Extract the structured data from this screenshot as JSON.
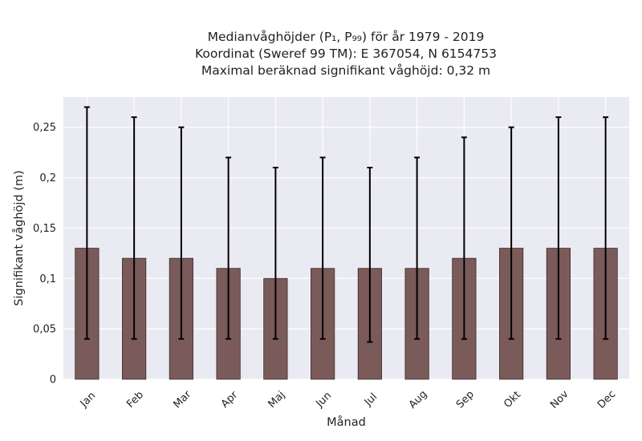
{
  "title_lines": [
    "Medianvåghöjder (P₁, P₉₉) för år 1979 - 2019",
    "Koordinat (Sweref 99 TM): E 367054, N 6154753",
    "Maximal beräknad signifikant våghöjd: 0,32 m"
  ],
  "chart_data": {
    "type": "bar",
    "title": "Medianvåghöjder (P₁, P₉₉) för år 1979 - 2019",
    "xlabel": "Månad",
    "ylabel": "Signifikant våghöjd (m)",
    "categories": [
      "Jan",
      "Feb",
      "Mar",
      "Apr",
      "Maj",
      "Jun",
      "Jul",
      "Aug",
      "Sep",
      "Okt",
      "Nov",
      "Dec"
    ],
    "values": [
      0.13,
      0.12,
      0.12,
      0.11,
      0.1,
      0.11,
      0.11,
      0.11,
      0.12,
      0.13,
      0.13,
      0.13
    ],
    "error_low": [
      0.04,
      0.04,
      0.04,
      0.04,
      0.04,
      0.04,
      0.037,
      0.04,
      0.04,
      0.04,
      0.04,
      0.04
    ],
    "error_high": [
      0.27,
      0.26,
      0.25,
      0.22,
      0.21,
      0.22,
      0.21,
      0.22,
      0.24,
      0.25,
      0.26,
      0.26
    ],
    "ylim": [
      0,
      0.28
    ],
    "yticks": [
      0,
      0.05,
      0.1,
      0.15,
      0.2,
      0.25
    ],
    "ytick_labels": [
      "0",
      "0,05",
      "0,1",
      "0,15",
      "0,2",
      "0,25"
    ],
    "grid": true,
    "colors": {
      "bar": "#7b5a5a",
      "bar_edge": "#3a2a2a",
      "errorbar": "#000000",
      "plot_background": "#eaeaf2",
      "grid": "#ffffff"
    }
  }
}
